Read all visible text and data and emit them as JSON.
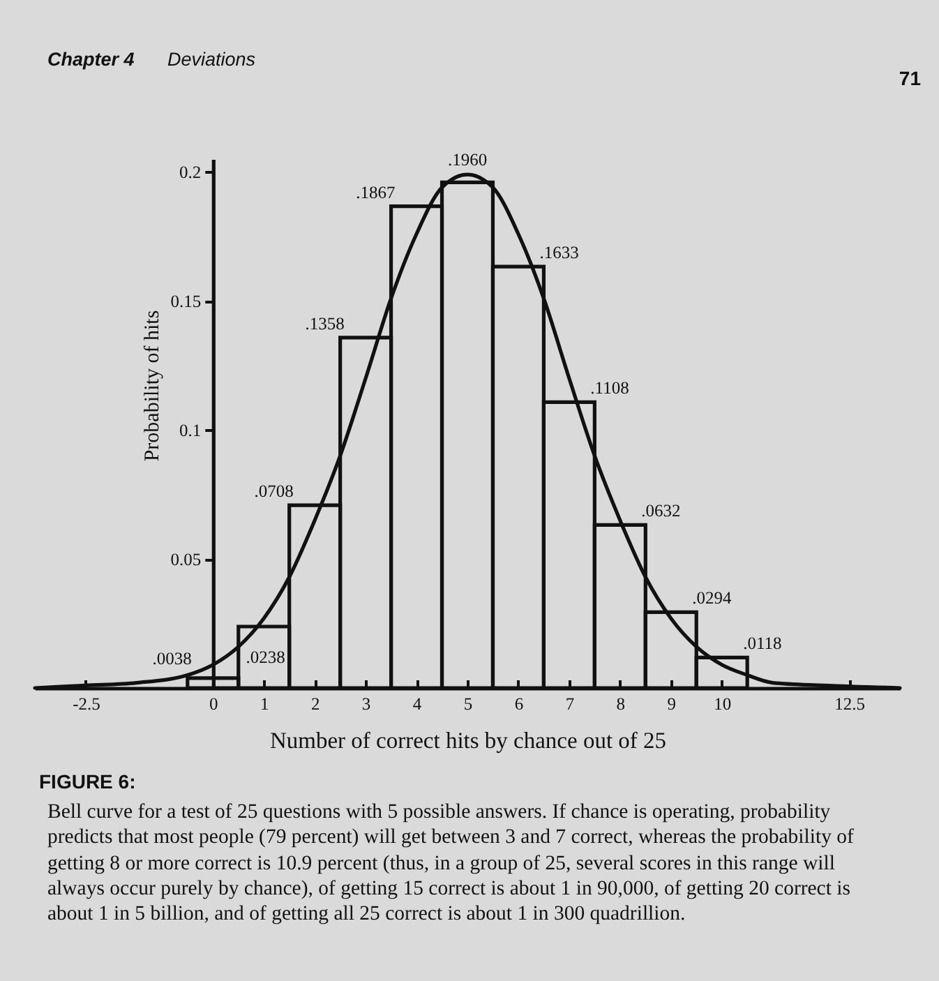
{
  "chart_data": {
    "type": "histogram",
    "title": "FIGURE 6:",
    "subtitle": "Bell curve for a test of 25 questions with 5 possible answers. If chance is operating, probability predicts that most people (79 percent) will get between 3 and 7 correct, whereas the probability of getting 8 or more correct is 10.9 percent (thus, in a group of 25, several scores in this range will always occur purely by chance), of getting 15 correct is about 1 in 90,000, of getting 20 correct is about 1 in 5 billion, and of getting all 25 correct is about 1 in 300 quadrillion.",
    "xlabel": "Number of correct hits by chance out of 25",
    "ylabel": "Probability of hits",
    "annotations": [
      "Chapter 4",
      "Deviations",
      "71"
    ],
    "bins": [
      -0.5,
      0.5,
      1.5,
      2.5,
      3.5,
      4.5,
      5.5,
      6.5,
      7.5,
      8.5,
      9.5,
      10.5
    ],
    "series": [
      {
        "color": "#111111",
        "values": [
          0.0038,
          0.0238,
          0.0708,
          0.1358,
          0.1867,
          0.196,
          0.1633,
          0.1108,
          0.0632,
          0.0294,
          0.0118
        ],
        "value_labels": [
          ".0038",
          ".0238",
          ".0708",
          ".1358",
          ".1867",
          ".1960",
          ".1633",
          ".1108",
          ".0632",
          ".0294",
          ".0118"
        ]
      },
      {
        "type": "line",
        "color": "#111111",
        "x": [
          -3.5,
          -2.5,
          -1.5,
          -0.5,
          0,
          0.5,
          1,
          1.5,
          2,
          2.5,
          3,
          3.5,
          4,
          4.5,
          5,
          5.5,
          6,
          6.5,
          7,
          7.5,
          8,
          8.5,
          9,
          9.5,
          10,
          10.5,
          11,
          12,
          13.5
        ],
        "values": [
          0,
          0.001,
          0.002,
          0.005,
          0.009,
          0.016,
          0.027,
          0.043,
          0.065,
          0.09,
          0.12,
          0.151,
          0.176,
          0.194,
          0.199,
          0.194,
          0.176,
          0.151,
          0.12,
          0.09,
          0.065,
          0.043,
          0.027,
          0.016,
          0.009,
          0.005,
          0.002,
          0.001,
          0
        ]
      }
    ],
    "xlim": [
      -3.5,
      13.5
    ],
    "ylim": [
      0,
      0.205
    ],
    "xticks": [
      -2.5,
      0,
      1,
      2,
      3,
      4,
      5,
      6,
      7,
      8,
      9,
      10,
      12.5
    ],
    "yticks": [
      0.05,
      0.1,
      0.15,
      0.2
    ]
  }
}
